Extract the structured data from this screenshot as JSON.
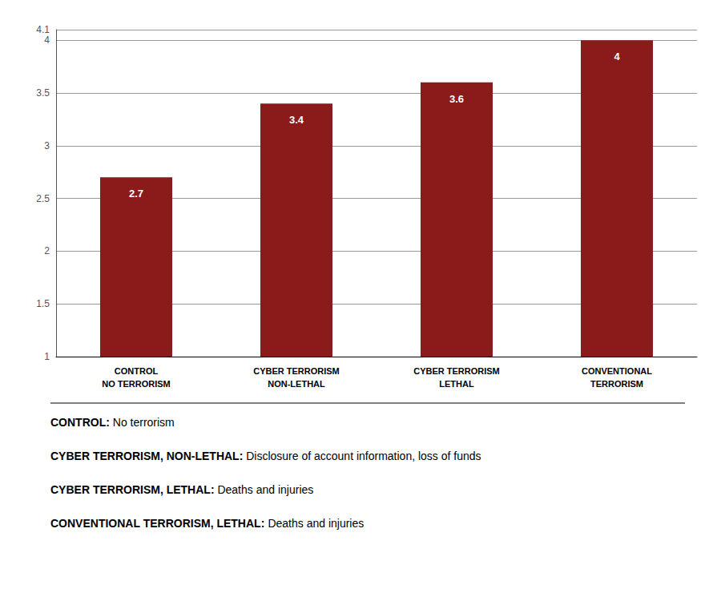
{
  "chart_data": {
    "type": "bar",
    "categories": [
      "CONTROL\nNO TERRORISM",
      "CYBER TERRORISM\nNON-LETHAL",
      "CYBER TERRORISM\nLETHAL",
      "CONVENTIONAL\nTERRORISM"
    ],
    "values": [
      2.7,
      3.4,
      3.6,
      4.0
    ],
    "color": "#8B1A1A",
    "ylim": [
      1,
      4.1
    ],
    "yticks": [
      1,
      1.5,
      2,
      2.5,
      3,
      3.5,
      4
    ],
    "grid": true,
    "data_labels": true,
    "annotations": [
      "CONTROL: No terrorism",
      "CYBER TERRORISM, NON-LETHAL: Disclosure of account information, loss of funds",
      "CYBER TERRORISM, LETHAL: Deaths and injuries",
      "CONVENTIONAL TERRORISM, LETHAL: Deaths and injuries"
    ]
  }
}
